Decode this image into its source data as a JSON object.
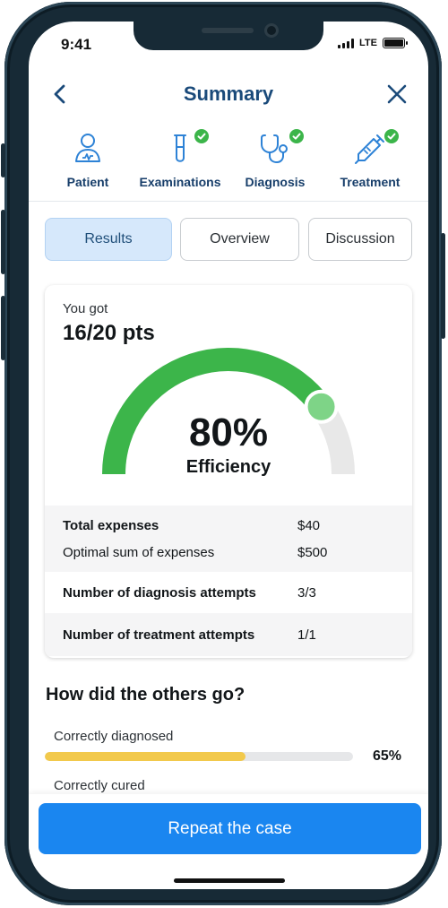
{
  "status": {
    "time": "9:41",
    "network": "LTE"
  },
  "header": {
    "title": "Summary",
    "back_icon": "chevron-left-icon",
    "close_icon": "close-icon"
  },
  "steps": [
    {
      "label": "Patient",
      "icon": "patient-icon",
      "completed": false
    },
    {
      "label": "Examinations",
      "icon": "test-tube-icon",
      "completed": true
    },
    {
      "label": "Diagnosis",
      "icon": "stethoscope-icon",
      "completed": true
    },
    {
      "label": "Treatment",
      "icon": "syringe-icon",
      "completed": true
    }
  ],
  "tabs": [
    {
      "label": "Results",
      "active": true
    },
    {
      "label": "Overview",
      "active": false
    },
    {
      "label": "Discussion",
      "active": false
    }
  ],
  "score": {
    "intro": "You got",
    "points": "16/20 pts",
    "efficiency_value": 0.8,
    "efficiency_text": "80%",
    "efficiency_label": "Efficiency"
  },
  "stats": {
    "total_expenses_label": "Total expenses",
    "total_expenses_value": "$40",
    "optimal_sum_label": "Optimal sum of expenses",
    "optimal_sum_value": "$500",
    "diagnosis_attempts_label": "Number of diagnosis attempts",
    "diagnosis_attempts_value": "3/3",
    "treatment_attempts_label": "Number of treatment attempts",
    "treatment_attempts_value": "1/1"
  },
  "others": {
    "title": "How did the others go?",
    "items": [
      {
        "label": "Correctly diagnosed",
        "value_text": "65%",
        "fraction": 0.65
      },
      {
        "label": "Correctly cured",
        "value_text": "",
        "fraction": 0
      }
    ]
  },
  "actions": {
    "repeat_label": "Repeat the case"
  },
  "colors": {
    "primary": "#1a86f0",
    "title": "#1a4a7a",
    "gauge_fill": "#3cb54a",
    "gauge_track": "#e8e8e8",
    "gauge_knob": "#7ed487",
    "progress_fill": "#f2c94c",
    "check_badge": "#3cb54a"
  }
}
